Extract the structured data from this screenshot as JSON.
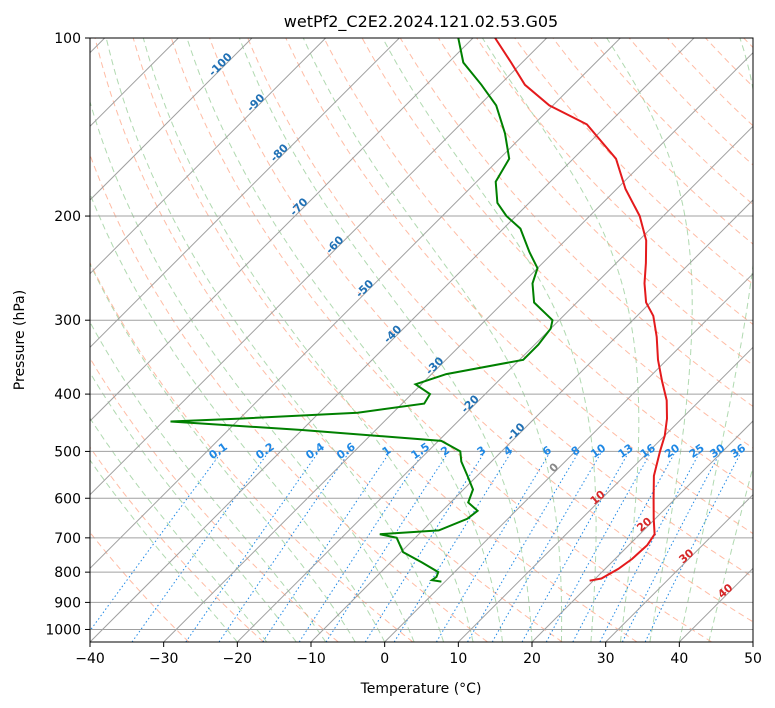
{
  "chart_data": {
    "type": "line",
    "subtype": "skew-T log-P diagram",
    "title": "wetPf2_C2E2.2024.121.02.53.G05",
    "xlabel": "Temperature (°C)",
    "ylabel": "Pressure (hPa)",
    "xlim": [
      -40,
      50
    ],
    "ylim": [
      1050,
      100
    ],
    "x_ticks": [
      -40,
      -30,
      -20,
      -10,
      0,
      10,
      20,
      30,
      40,
      50
    ],
    "x_tick_labels": [
      "−40",
      "−30",
      "−20",
      "−10",
      "0",
      "10",
      "20",
      "30",
      "40",
      "50"
    ],
    "y_ticks": [
      100,
      200,
      300,
      400,
      500,
      600,
      700,
      800,
      900,
      1000
    ],
    "y_tick_labels": [
      "100",
      "200",
      "300",
      "400",
      "500",
      "600",
      "700",
      "800",
      "900",
      "1000"
    ],
    "colors": {
      "temperature": "#e41a1c",
      "dewpoint": "#008000",
      "isotherm": "#a0a0a0",
      "isobar": "#a0a0a0",
      "dry_adiabat": "#ff9f7f",
      "moist_adiabat": "#8fc98f",
      "mixing_ratio": "#1e88e5",
      "isotherm_label": "#2171b5",
      "wet_bulb_label": "#d62728"
    },
    "series": [
      {
        "name": "Temperature",
        "points": [
          {
            "p": 827,
            "t": 19.5
          },
          {
            "p": 820,
            "t": 20.8
          },
          {
            "p": 790,
            "t": 21.8
          },
          {
            "p": 760,
            "t": 22.3
          },
          {
            "p": 720,
            "t": 22.5
          },
          {
            "p": 690,
            "t": 22.0
          },
          {
            "p": 650,
            "t": 19.8
          },
          {
            "p": 600,
            "t": 17.0
          },
          {
            "p": 550,
            "t": 14.0
          },
          {
            "p": 500,
            "t": 11.5
          },
          {
            "p": 470,
            "t": 10.0
          },
          {
            "p": 440,
            "t": 8.0
          },
          {
            "p": 410,
            "t": 5.5
          },
          {
            "p": 380,
            "t": 2.2
          },
          {
            "p": 350,
            "t": -1.2
          },
          {
            "p": 320,
            "t": -4.5
          },
          {
            "p": 295,
            "t": -7.8
          },
          {
            "p": 280,
            "t": -10.6
          },
          {
            "p": 260,
            "t": -13.4
          },
          {
            "p": 240,
            "t": -16.0
          },
          {
            "p": 220,
            "t": -19.0
          },
          {
            "p": 200,
            "t": -23.2
          },
          {
            "p": 180,
            "t": -28.8
          },
          {
            "p": 160,
            "t": -34.2
          },
          {
            "p": 140,
            "t": -42.8
          },
          {
            "p": 130,
            "t": -50.5
          },
          {
            "p": 120,
            "t": -56.6
          },
          {
            "p": 110,
            "t": -61.5
          },
          {
            "p": 100,
            "t": -67.0
          }
        ]
      },
      {
        "name": "Dewpoint",
        "points": [
          {
            "p": 830,
            "t": -0.5
          },
          {
            "p": 825,
            "t": -2.0
          },
          {
            "p": 815,
            "t": -1.8
          },
          {
            "p": 800,
            "t": -2.2
          },
          {
            "p": 770,
            "t": -5.8
          },
          {
            "p": 740,
            "t": -9.7
          },
          {
            "p": 700,
            "t": -12.5
          },
          {
            "p": 690,
            "t": -15.3
          },
          {
            "p": 680,
            "t": -7.8
          },
          {
            "p": 650,
            "t": -5.5
          },
          {
            "p": 630,
            "t": -5.2
          },
          {
            "p": 610,
            "t": -7.6
          },
          {
            "p": 580,
            "t": -8.7
          },
          {
            "p": 550,
            "t": -11.3
          },
          {
            "p": 520,
            "t": -14.1
          },
          {
            "p": 500,
            "t": -15.6
          },
          {
            "p": 480,
            "t": -19.6
          },
          {
            "p": 460,
            "t": -40.0
          },
          {
            "p": 445,
            "t": -59.0
          },
          {
            "p": 440,
            "t": -50.0
          },
          {
            "p": 430,
            "t": -34.8
          },
          {
            "p": 415,
            "t": -27.0
          },
          {
            "p": 400,
            "t": -27.5
          },
          {
            "p": 385,
            "t": -30.8
          },
          {
            "p": 370,
            "t": -28.0
          },
          {
            "p": 350,
            "t": -19.5
          },
          {
            "p": 330,
            "t": -19.5
          },
          {
            "p": 310,
            "t": -20.0
          },
          {
            "p": 300,
            "t": -20.9
          },
          {
            "p": 280,
            "t": -25.8
          },
          {
            "p": 260,
            "t": -28.6
          },
          {
            "p": 245,
            "t": -30.0
          },
          {
            "p": 230,
            "t": -33.3
          },
          {
            "p": 210,
            "t": -37.7
          },
          {
            "p": 200,
            "t": -41.3
          },
          {
            "p": 190,
            "t": -44.3
          },
          {
            "p": 175,
            "t": -47.4
          },
          {
            "p": 160,
            "t": -48.7
          },
          {
            "p": 145,
            "t": -52.7
          },
          {
            "p": 130,
            "t": -57.7
          },
          {
            "p": 120,
            "t": -62.5
          },
          {
            "p": 110,
            "t": -68.0
          },
          {
            "p": 100,
            "t": -72.0
          }
        ]
      }
    ],
    "isotherm_labels": [
      {
        "text": "-100",
        "t": -100,
        "p": 112
      },
      {
        "text": "-90",
        "t": -90,
        "p": 130
      },
      {
        "text": "-80",
        "t": -80,
        "p": 158
      },
      {
        "text": "-70",
        "t": -70,
        "p": 195
      },
      {
        "text": "-60",
        "t": -60,
        "p": 226
      },
      {
        "text": "-50",
        "t": -50,
        "p": 268
      },
      {
        "text": "-40",
        "t": -40,
        "p": 320
      },
      {
        "text": "-30",
        "t": -30,
        "p": 362
      },
      {
        "text": "-20",
        "t": -20,
        "p": 420
      },
      {
        "text": "-10",
        "t": -10,
        "p": 468
      },
      {
        "text": "0",
        "t": 0,
        "p": 538
      }
    ],
    "mixing_ratio_values": [
      0.1,
      0.2,
      0.4,
      0.6,
      1,
      1.5,
      2,
      3,
      4,
      6,
      8,
      10,
      13,
      16,
      20,
      25,
      30,
      36
    ],
    "mixing_ratio_labels": [
      "0.1",
      "0.2",
      "0.4",
      "0.6",
      "1",
      "1.5",
      "2",
      "3",
      "4",
      "6",
      "8",
      "10",
      "13",
      "16",
      "20",
      "25",
      "30",
      "36"
    ],
    "mixing_ratio_label_pressure": 505,
    "wet_bulb_labels": [
      {
        "text": "10",
        "t": 10,
        "p": 605
      },
      {
        "text": "20",
        "t": 20,
        "p": 672
      },
      {
        "text": "30",
        "t": 30,
        "p": 760
      },
      {
        "text": "40",
        "t": 40,
        "p": 870
      }
    ]
  }
}
